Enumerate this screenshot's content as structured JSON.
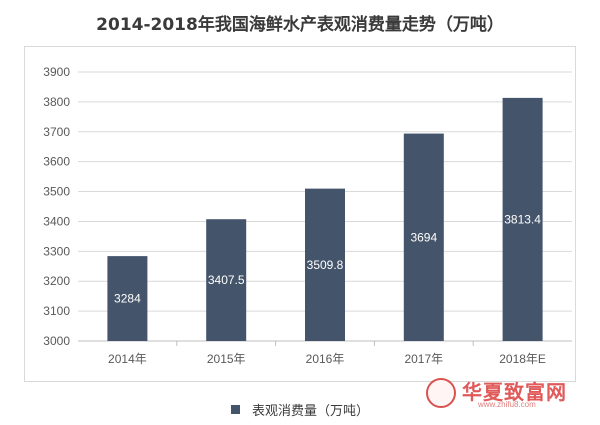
{
  "title": "2014-2018年我国海鲜水产表观消费量走势（万吨）",
  "legend": {
    "label": "表观消费量（万吨）"
  },
  "watermark": {
    "text": "华夏致富网",
    "url": "www.zhifu8.com"
  },
  "colors": {
    "bar": "#44546a",
    "grid": "#d9d9d9",
    "axis": "#bfbfbf"
  },
  "chart_data": {
    "type": "bar",
    "title": "2014-2018年我国海鲜水产表观消费量走势（万吨）",
    "categories": [
      "2014年",
      "2015年",
      "2016年",
      "2017年",
      "2018年E"
    ],
    "series": [
      {
        "name": "表观消费量（万吨）",
        "values": [
          3284,
          3407.5,
          3509.8,
          3694,
          3813.4
        ],
        "labels": [
          "3284",
          "3407.5",
          "3509.8",
          "3694",
          "3813.4"
        ]
      }
    ],
    "ylim": [
      3000,
      3900
    ],
    "yticks": [
      3000,
      3100,
      3200,
      3300,
      3400,
      3500,
      3600,
      3700,
      3800,
      3900
    ],
    "grid": true,
    "legend_position": "bottom"
  }
}
